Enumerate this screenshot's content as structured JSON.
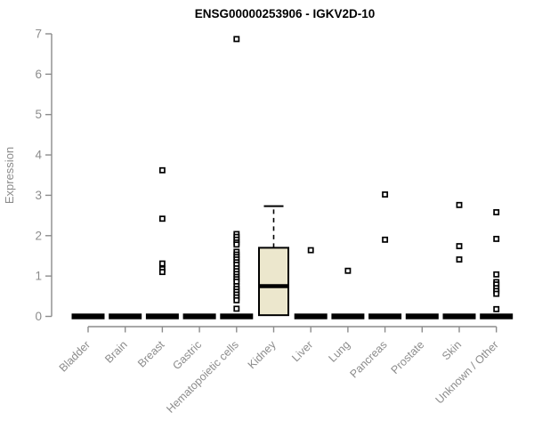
{
  "chart_data": {
    "type": "boxplot",
    "title": "ENSG00000253906 - IGKV2D-10",
    "ylabel": "Expression",
    "xlabel": "",
    "ylim": [
      0,
      7
    ],
    "yticks": [
      0,
      1,
      2,
      3,
      4,
      5,
      6,
      7
    ],
    "grid": "off",
    "legend": "none",
    "categories": [
      "Bladder",
      "Brain",
      "Breast",
      "Gastric",
      "Hematopoietic cells",
      "Kidney",
      "Liver",
      "Lung",
      "Pancreas",
      "Prostate",
      "Skin",
      "Unknown / Other"
    ],
    "boxes": [
      {
        "category": "Bladder",
        "q1": 0,
        "median": 0,
        "q3": 0,
        "whisker_low": 0,
        "whisker_high": 0,
        "outliers": []
      },
      {
        "category": "Brain",
        "q1": 0,
        "median": 0,
        "q3": 0,
        "whisker_low": 0,
        "whisker_high": 0,
        "outliers": []
      },
      {
        "category": "Breast",
        "q1": 0,
        "median": 0,
        "q3": 0,
        "whisker_low": 0,
        "whisker_high": 0,
        "outliers": [
          3.62,
          2.42,
          1.31,
          1.17,
          1.1
        ]
      },
      {
        "category": "Gastric",
        "q1": 0,
        "median": 0,
        "q3": 0,
        "whisker_low": 0,
        "whisker_high": 0,
        "outliers": []
      },
      {
        "category": "Hematopoietic cells",
        "q1": 0,
        "median": 0,
        "q3": 0,
        "whisker_low": 0,
        "whisker_high": 0,
        "outliers": [
          6.87,
          2.04,
          1.97,
          1.9,
          1.83,
          1.78,
          1.6,
          1.53,
          1.47,
          1.41,
          1.34,
          1.28,
          1.19,
          1.12,
          1.05,
          0.98,
          0.92,
          0.86,
          0.75,
          0.68,
          0.61,
          0.54,
          0.47,
          0.4,
          0.19
        ]
      },
      {
        "category": "Kidney",
        "q1": 0.03,
        "median": 0.75,
        "q3": 1.7,
        "whisker_low": 0.03,
        "whisker_high": 2.73,
        "outliers": []
      },
      {
        "category": "Liver",
        "q1": 0,
        "median": 0,
        "q3": 0,
        "whisker_low": 0,
        "whisker_high": 0,
        "outliers": [
          1.64
        ]
      },
      {
        "category": "Lung",
        "q1": 0,
        "median": 0,
        "q3": 0,
        "whisker_low": 0,
        "whisker_high": 0,
        "outliers": [
          1.13
        ]
      },
      {
        "category": "Pancreas",
        "q1": 0,
        "median": 0,
        "q3": 0,
        "whisker_low": 0,
        "whisker_high": 0,
        "outliers": [
          3.02,
          1.9
        ]
      },
      {
        "category": "Prostate",
        "q1": 0,
        "median": 0,
        "q3": 0,
        "whisker_low": 0,
        "whisker_high": 0,
        "outliers": []
      },
      {
        "category": "Skin",
        "q1": 0,
        "median": 0,
        "q3": 0,
        "whisker_low": 0,
        "whisker_high": 0,
        "outliers": [
          2.76,
          1.74,
          1.41
        ]
      },
      {
        "category": "Unknown / Other",
        "q1": 0,
        "median": 0,
        "q3": 0,
        "whisker_low": 0,
        "whisker_high": 0,
        "outliers": [
          2.58,
          1.92,
          1.04,
          0.85,
          0.79,
          0.7,
          0.63,
          0.56,
          0.18
        ]
      }
    ],
    "colors": {
      "box_fill": "#ece7cd",
      "box_stroke": "#000000",
      "median": "#000000",
      "outlier_stroke": "#000000",
      "outlier_fill": "#ffffff",
      "axis": "#8c8c8c",
      "tick_label": "#8c8c8c",
      "title": "#000000"
    }
  }
}
